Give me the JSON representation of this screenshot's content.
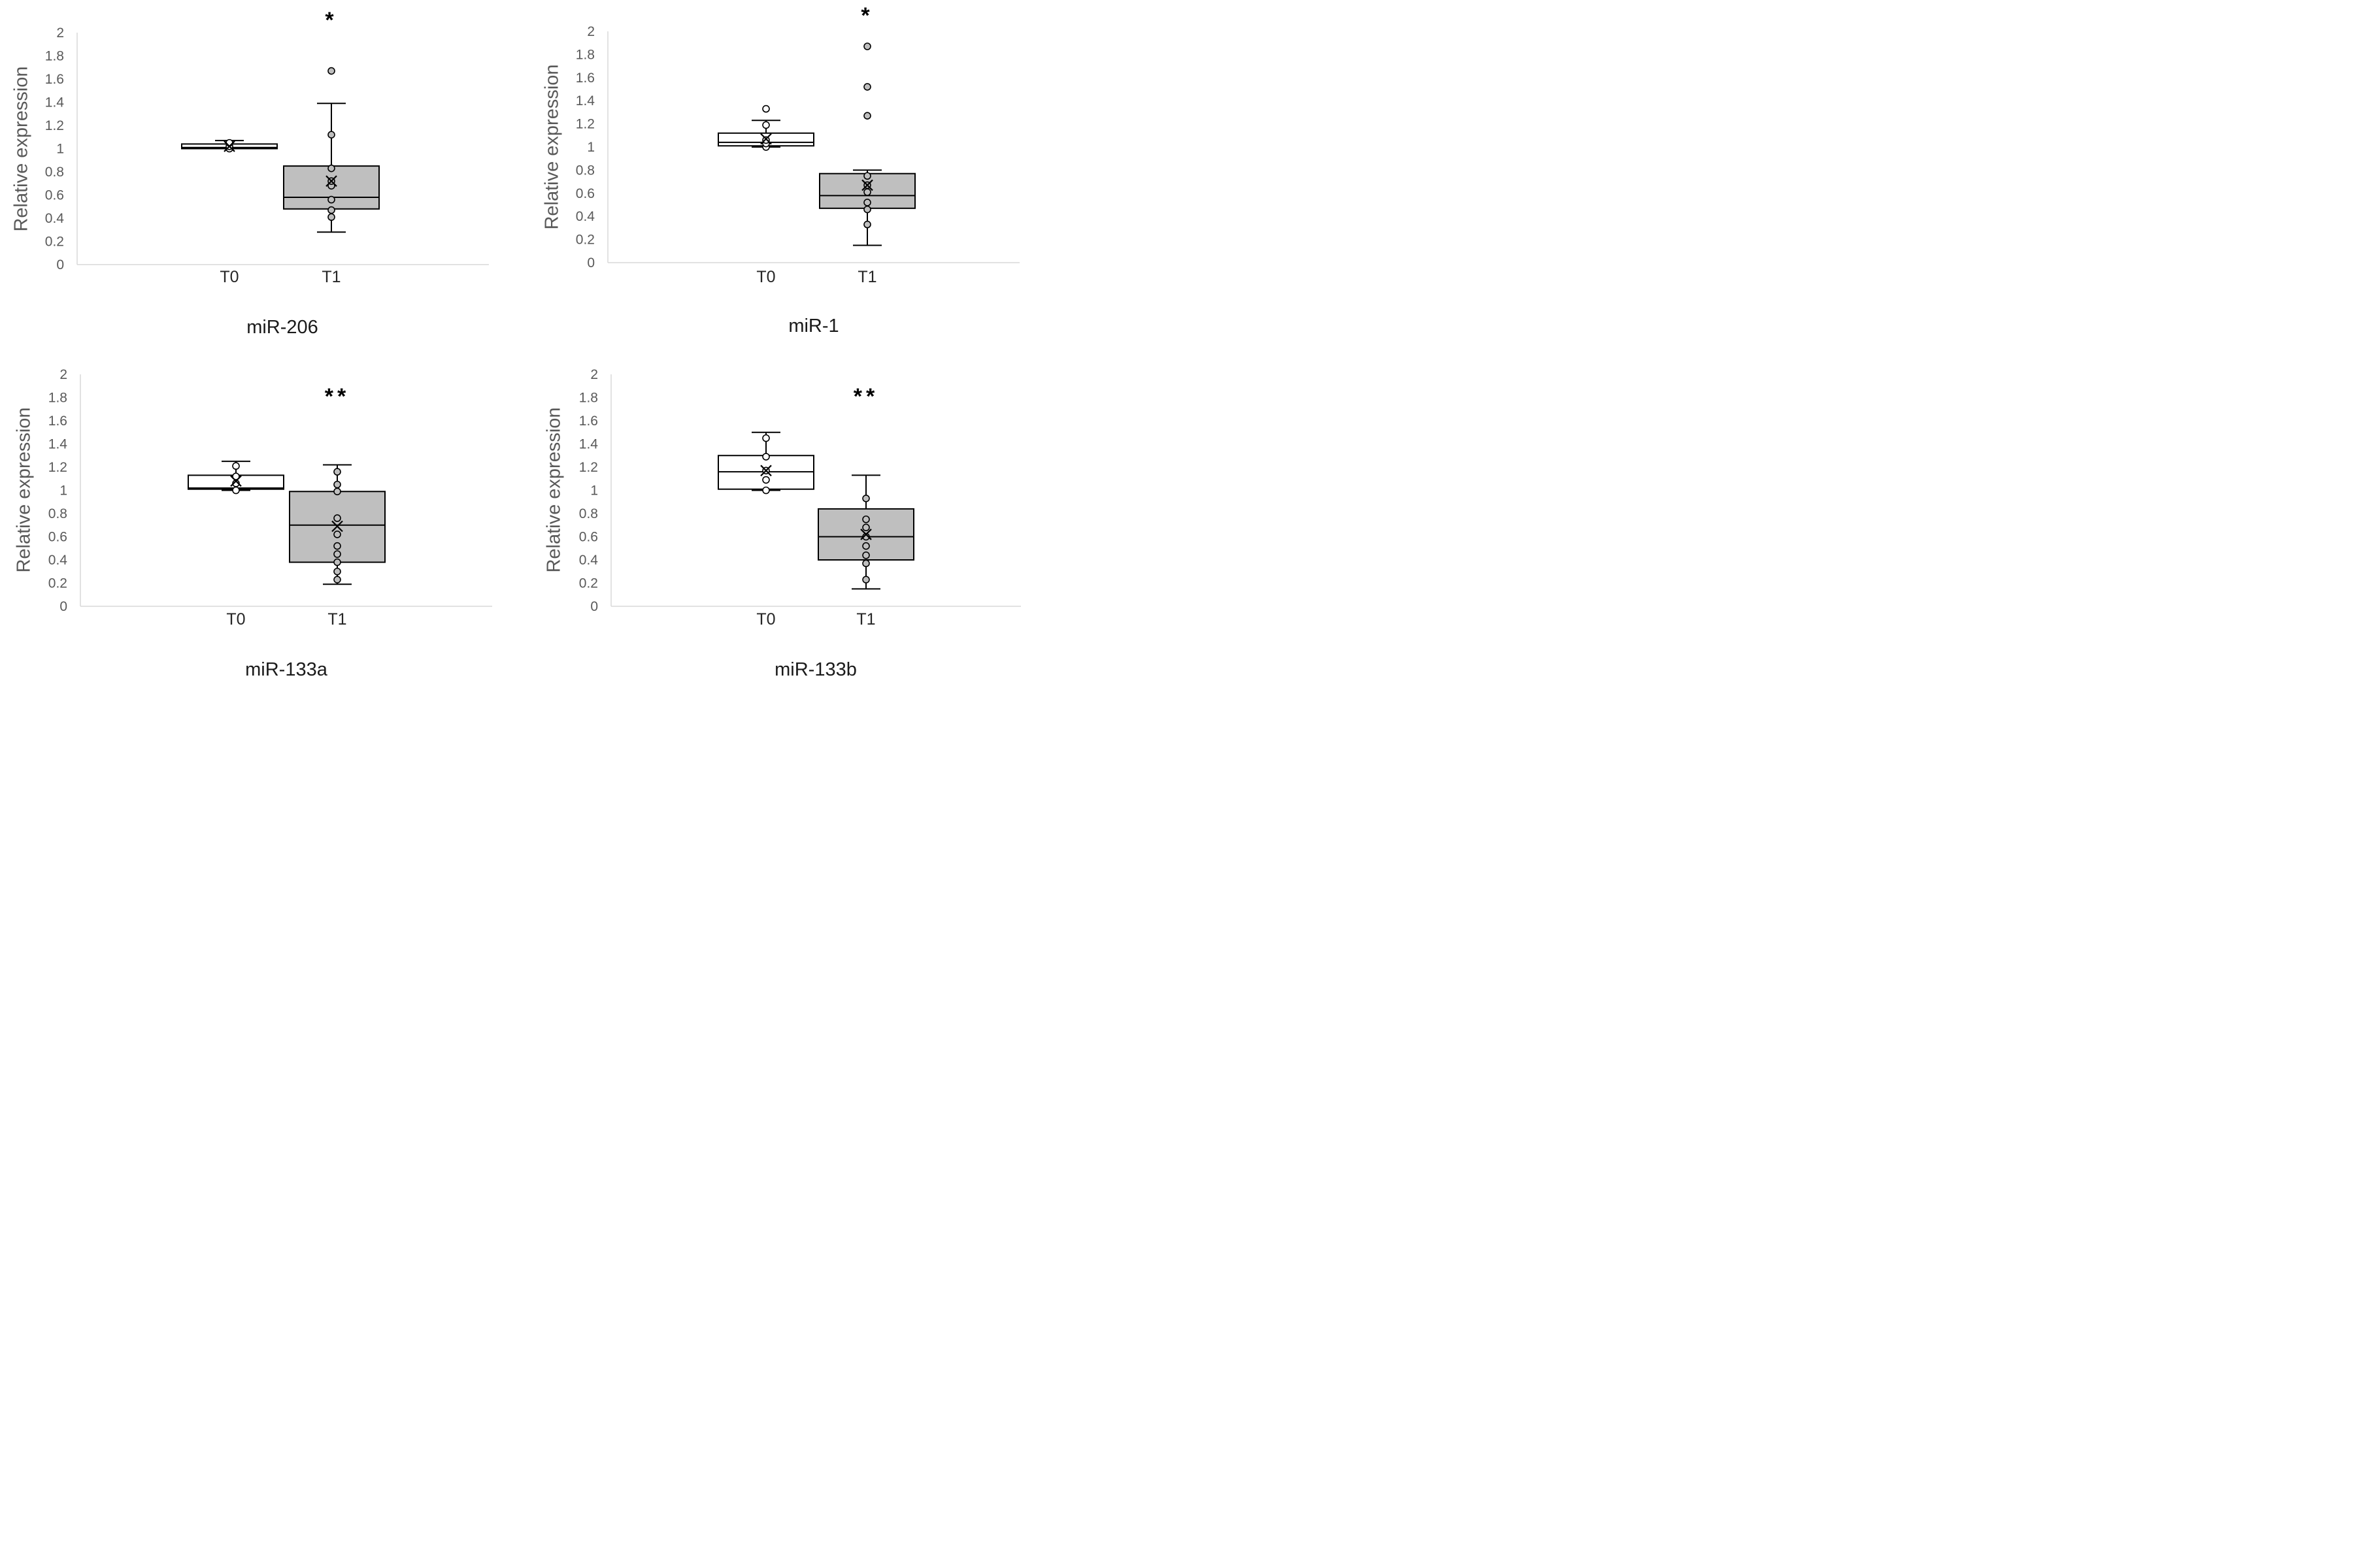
{
  "chart_data": [
    {
      "type": "box",
      "title": "miR-206",
      "xlabel": "",
      "ylabel": "Relative expression",
      "ylim": [
        0,
        2
      ],
      "yticks": [
        "0",
        "0.2",
        "0.4",
        "0.6",
        "0.8",
        "1",
        "1.2",
        "1.4",
        "1.6",
        "1.8",
        "2"
      ],
      "categories": [
        "T0",
        "T1"
      ],
      "significance": {
        "category": "T1",
        "label": "*"
      },
      "boxes": [
        {
          "category": "T0",
          "fill": "#ffffff",
          "min": 1.0,
          "q1": 1.0,
          "median": 1.01,
          "q3": 1.04,
          "max": 1.07,
          "mean": 1.02,
          "points": [
            1.0,
            1.02,
            1.05
          ]
        },
        {
          "category": "T1",
          "fill": "#bfbfbf",
          "min": 0.28,
          "q1": 0.48,
          "median": 0.58,
          "q3": 0.85,
          "max": 1.39,
          "mean": 0.72,
          "points": [
            0.41,
            0.47,
            0.56,
            0.68,
            0.72,
            0.83,
            1.12,
            1.67
          ]
        }
      ]
    },
    {
      "type": "box",
      "title": "miR-1",
      "xlabel": "",
      "ylabel": "Relative expression",
      "ylim": [
        0,
        2
      ],
      "yticks": [
        "0",
        "0.2",
        "0.4",
        "0.6",
        "0.8",
        "1",
        "1.2",
        "1.4",
        "1.6",
        "1.8",
        "2"
      ],
      "categories": [
        "T0",
        "T1"
      ],
      "significance": {
        "category": "T1",
        "label": "*"
      },
      "boxes": [
        {
          "category": "T0",
          "fill": "#ffffff",
          "min": 1.0,
          "q1": 1.01,
          "median": 1.04,
          "q3": 1.12,
          "max": 1.23,
          "mean": 1.07,
          "points": [
            1.0,
            1.03,
            1.06,
            1.19,
            1.33
          ]
        },
        {
          "category": "T1",
          "fill": "#bfbfbf",
          "min": 0.15,
          "q1": 0.47,
          "median": 0.58,
          "q3": 0.77,
          "max": 0.8,
          "mean": 0.67,
          "points": [
            0.33,
            0.46,
            0.52,
            0.61,
            0.67,
            0.75,
            1.27,
            1.52,
            1.87
          ]
        }
      ]
    },
    {
      "type": "box",
      "title": "miR-133a",
      "xlabel": "",
      "ylabel": "Relative expression",
      "ylim": [
        0,
        2
      ],
      "yticks": [
        "0",
        "0.2",
        "0.4",
        "0.6",
        "0.8",
        "1",
        "1.2",
        "1.4",
        "1.6",
        "1.8",
        "2"
      ],
      "categories": [
        "T0",
        "T1"
      ],
      "significance": {
        "category": "T1",
        "label": "**"
      },
      "boxes": [
        {
          "category": "T0",
          "fill": "#ffffff",
          "min": 1.0,
          "q1": 1.01,
          "median": 1.02,
          "q3": 1.13,
          "max": 1.25,
          "mean": 1.08,
          "points": [
            1.0,
            1.06,
            1.12,
            1.21
          ]
        },
        {
          "category": "T1",
          "fill": "#bfbfbf",
          "min": 0.19,
          "q1": 0.38,
          "median": 0.7,
          "q3": 0.99,
          "max": 1.22,
          "mean": 0.69,
          "points": [
            0.23,
            0.3,
            0.38,
            0.45,
            0.52,
            0.62,
            0.76,
            0.99,
            1.05,
            1.16
          ]
        }
      ]
    },
    {
      "type": "box",
      "title": "miR-133b",
      "xlabel": "",
      "ylabel": "Relative expression",
      "ylim": [
        0,
        2
      ],
      "yticks": [
        "0",
        "0.2",
        "0.4",
        "0.6",
        "0.8",
        "1",
        "1.2",
        "1.4",
        "1.6",
        "1.8",
        "2"
      ],
      "categories": [
        "T0",
        "T1"
      ],
      "significance": {
        "category": "T1",
        "label": "**"
      },
      "boxes": [
        {
          "category": "T0",
          "fill": "#ffffff",
          "min": 1.0,
          "q1": 1.01,
          "median": 1.16,
          "q3": 1.3,
          "max": 1.5,
          "mean": 1.17,
          "points": [
            1.0,
            1.09,
            1.17,
            1.29,
            1.45
          ]
        },
        {
          "category": "T1",
          "fill": "#bfbfbf",
          "min": 0.15,
          "q1": 0.4,
          "median": 0.6,
          "q3": 0.84,
          "max": 1.13,
          "mean": 0.62,
          "points": [
            0.23,
            0.37,
            0.44,
            0.52,
            0.6,
            0.68,
            0.75,
            0.93
          ]
        }
      ]
    }
  ]
}
